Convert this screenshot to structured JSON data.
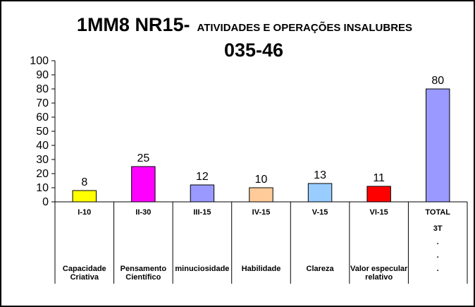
{
  "chart_data": {
    "type": "bar",
    "title": "1MM8 NR15-",
    "title_suffix": "ATIVIDADES E OPERAÇÕES INSALUBRES",
    "subtitle": "035-46",
    "ylim": [
      0,
      100
    ],
    "yticks": [
      0,
      10,
      20,
      30,
      40,
      50,
      60,
      70,
      80,
      90,
      100
    ],
    "grid": false,
    "legend": "none",
    "categories": [
      {
        "line1": "I-10",
        "line2": [
          "Capacidade",
          "Criativa"
        ],
        "value": 8,
        "color": "#ffff00"
      },
      {
        "line1": "II-30",
        "line2": [
          "Pensamento",
          "Científico"
        ],
        "value": 25,
        "color": "#ff00ff"
      },
      {
        "line1": "III-15",
        "line2": [
          "minuciosidade"
        ],
        "value": 12,
        "color": "#9999ff"
      },
      {
        "line1": "IV-15",
        "line2": [
          "Habilidade"
        ],
        "value": 10,
        "color": "#ffcc99"
      },
      {
        "line1": "V-15",
        "line2": [
          "Clareza"
        ],
        "value": 13,
        "color": "#99ccff"
      },
      {
        "line1": "VI-15",
        "line2": [
          "Valor especular",
          "relativo"
        ],
        "value": 11,
        "color": "#ff0000"
      },
      {
        "line1": "TOTAL",
        "line2": [
          "3T",
          ".",
          ".",
          "."
        ],
        "value": 80,
        "color": "#9999ff"
      }
    ]
  }
}
